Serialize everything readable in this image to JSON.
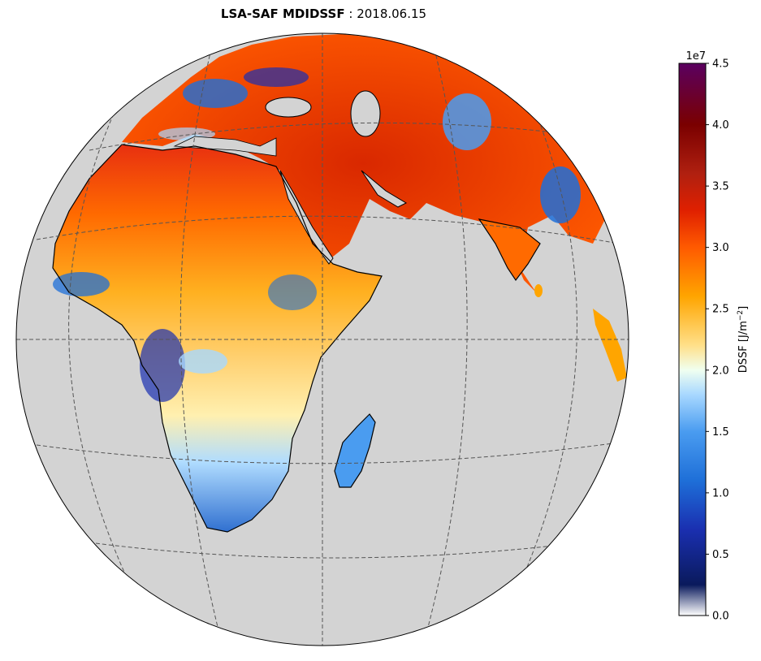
{
  "title": {
    "product": "LSA-SAF MDIDSSF",
    "separator": " : ",
    "date": "2018.06.15"
  },
  "colorbar": {
    "label": "DSSF [J/m",
    "label_sup": "−2",
    "label_end": "]",
    "offset": "1e7",
    "ticks": [
      "0.0",
      "0.5",
      "1.0",
      "1.5",
      "2.0",
      "2.5",
      "3.0",
      "3.5",
      "4.0",
      "4.5"
    ],
    "range": [
      0,
      4.5
    ],
    "stops": [
      {
        "v": 0.0,
        "c": "#ffffff"
      },
      {
        "v": 0.25,
        "c": "#0a1a5c"
      },
      {
        "v": 0.7,
        "c": "#1a2fb0"
      },
      {
        "v": 1.1,
        "c": "#1e6fd8"
      },
      {
        "v": 1.5,
        "c": "#4a9cf0"
      },
      {
        "v": 1.8,
        "c": "#a8d8ff"
      },
      {
        "v": 2.0,
        "c": "#f0fff0"
      },
      {
        "v": 2.2,
        "c": "#ffe08a"
      },
      {
        "v": 2.6,
        "c": "#ffa500"
      },
      {
        "v": 3.0,
        "c": "#ff5a00"
      },
      {
        "v": 3.3,
        "c": "#e02000"
      },
      {
        "v": 3.6,
        "c": "#b02010"
      },
      {
        "v": 4.0,
        "c": "#7a0000"
      },
      {
        "v": 4.5,
        "c": "#5a0060"
      }
    ]
  },
  "map": {
    "projection": "orthographic",
    "ocean_color": "#d3d3d3",
    "gridlines": true
  }
}
